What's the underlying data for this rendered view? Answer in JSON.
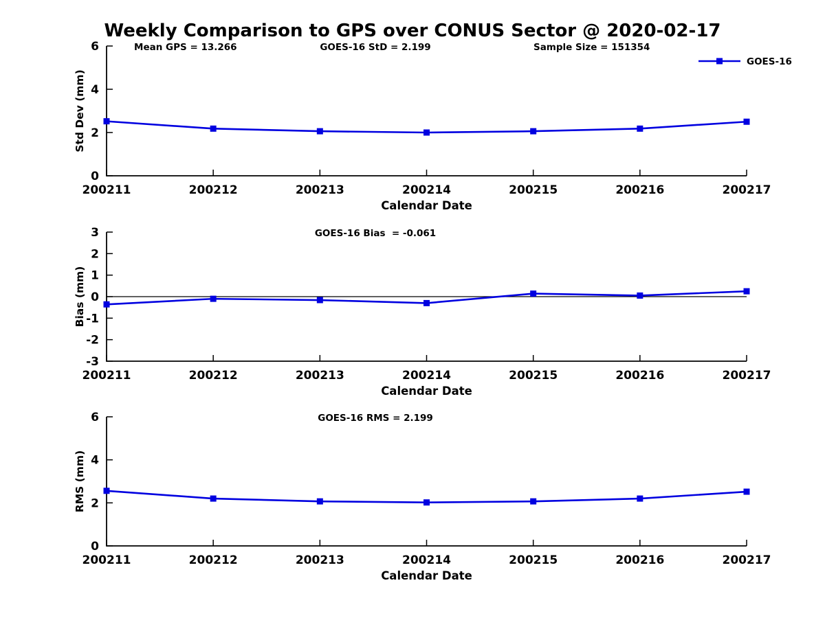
{
  "figure": {
    "title": "Weekly Comparison to GPS over CONUS Sector @ 2020-02-17",
    "background": "#ffffff",
    "line_color": "#0000e0",
    "text_color": "#000000"
  },
  "legend": {
    "label": "GOES-16",
    "position": "top-right",
    "marker": "square"
  },
  "chart_data": [
    {
      "type": "line",
      "id": "stddev",
      "ylabel": "Std Dev (mm)",
      "xlabel": "Calendar Date",
      "ylim": [
        0,
        6
      ],
      "yticks": [
        0,
        2,
        4,
        6
      ],
      "grid": false,
      "zero_line": false,
      "categories": [
        "200211",
        "200212",
        "200213",
        "200214",
        "200215",
        "200216",
        "200217"
      ],
      "series": [
        {
          "name": "GOES-16",
          "values": [
            2.52,
            2.18,
            2.06,
            2.0,
            2.06,
            2.18,
            2.5
          ]
        }
      ],
      "annotations": [
        {
          "text": "Mean GPS = 13.266",
          "align": "left",
          "xfrac": 0.043
        },
        {
          "text": "GOES-16 StD = 2.199",
          "align": "center",
          "xfrac": 0.42
        },
        {
          "text": "Sample Size = 151354",
          "align": "left",
          "xfrac": 0.667
        }
      ]
    },
    {
      "type": "line",
      "id": "bias",
      "ylabel": "Bias (mm)",
      "xlabel": "Calendar Date",
      "ylim": [
        -3,
        3
      ],
      "yticks": [
        -3,
        -2,
        -1,
        0,
        1,
        2,
        3
      ],
      "grid": false,
      "zero_line": true,
      "categories": [
        "200211",
        "200212",
        "200213",
        "200214",
        "200215",
        "200216",
        "200217"
      ],
      "series": [
        {
          "name": "GOES-16",
          "values": [
            -0.36,
            -0.1,
            -0.16,
            -0.3,
            0.14,
            0.05,
            0.25
          ]
        }
      ],
      "annotations": [
        {
          "text": "GOES-16 Bias  = -0.061",
          "align": "center",
          "xfrac": 0.42
        }
      ]
    },
    {
      "type": "line",
      "id": "rms",
      "ylabel": "RMS (mm)",
      "xlabel": "Calendar Date",
      "ylim": [
        0,
        6
      ],
      "yticks": [
        0,
        2,
        4,
        6
      ],
      "grid": false,
      "zero_line": false,
      "categories": [
        "200211",
        "200212",
        "200213",
        "200214",
        "200215",
        "200216",
        "200217"
      ],
      "series": [
        {
          "name": "GOES-16",
          "values": [
            2.56,
            2.2,
            2.07,
            2.02,
            2.07,
            2.2,
            2.52
          ]
        }
      ],
      "annotations": [
        {
          "text": "GOES-16 RMS = 2.199",
          "align": "center",
          "xfrac": 0.42
        }
      ]
    }
  ]
}
